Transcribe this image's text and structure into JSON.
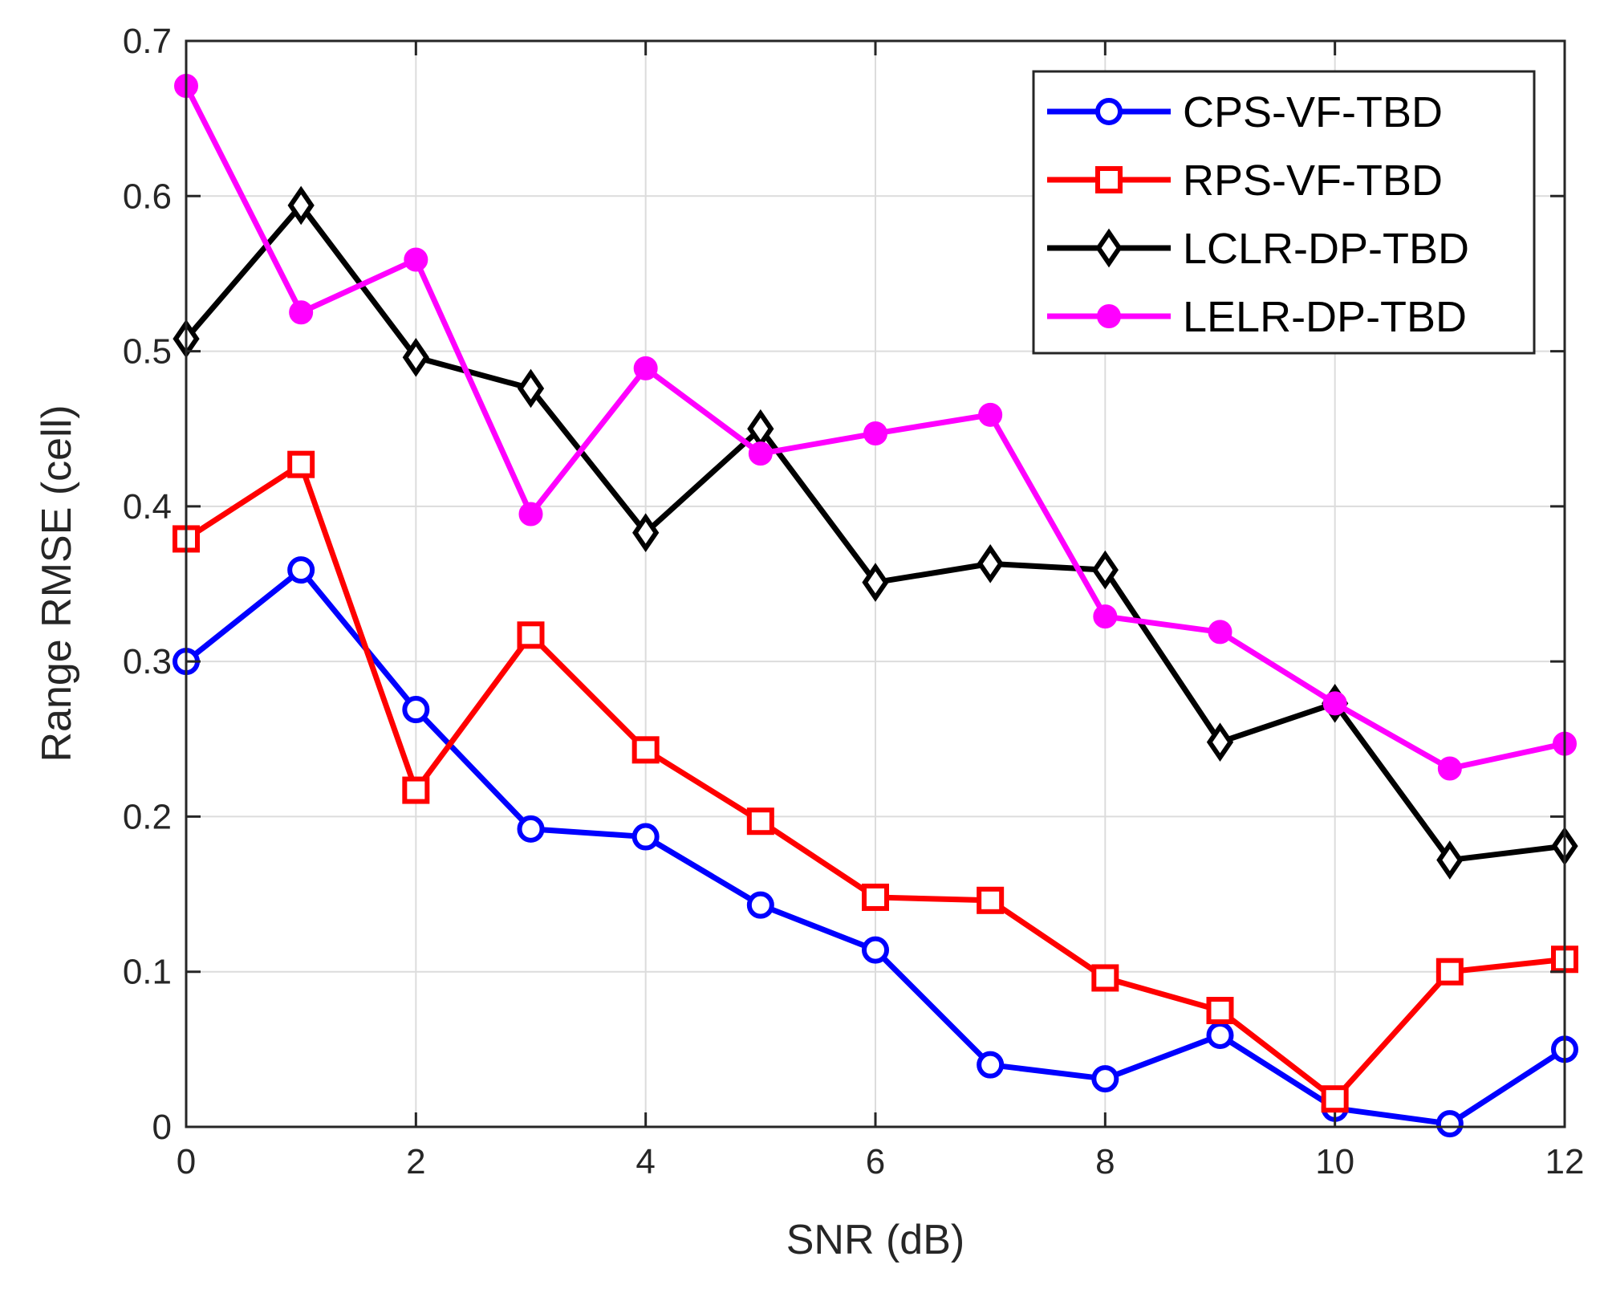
{
  "chart_data": {
    "type": "line",
    "title": "",
    "xlabel": "SNR (dB)",
    "ylabel": "Range RMSE (cell)",
    "xlim": [
      0,
      12
    ],
    "ylim": [
      0,
      0.7
    ],
    "grid": true,
    "legend_position": "top-right",
    "x": [
      0,
      1,
      2,
      3,
      4,
      5,
      6,
      7,
      8,
      9,
      10,
      11,
      12
    ],
    "xticks": [
      0,
      2,
      4,
      6,
      8,
      10,
      12
    ],
    "xtick_labels": [
      "0",
      "2",
      "4",
      "6",
      "8",
      "10",
      "12"
    ],
    "yticks": [
      0,
      0.1,
      0.2,
      0.3,
      0.4,
      0.5,
      0.6,
      0.7
    ],
    "ytick_labels": [
      "0",
      "0.1",
      "0.2",
      "0.3",
      "0.4",
      "0.5",
      "0.6",
      "0.7"
    ],
    "series": [
      {
        "name": "CPS-VF-TBD",
        "color": "#0000ff",
        "marker": "circle",
        "values": [
          0.3,
          0.359,
          0.269,
          0.192,
          0.187,
          0.143,
          0.114,
          0.04,
          0.031,
          0.059,
          0.012,
          0.002,
          0.05
        ]
      },
      {
        "name": "RPS-VF-TBD",
        "color": "#ff0000",
        "marker": "square",
        "values": [
          0.379,
          0.427,
          0.217,
          0.317,
          0.243,
          0.197,
          0.148,
          0.146,
          0.096,
          0.075,
          0.018,
          0.1,
          0.108
        ]
      },
      {
        "name": "LCLR-DP-TBD",
        "color": "#000000",
        "marker": "diamond",
        "values": [
          0.508,
          0.594,
          0.496,
          0.476,
          0.383,
          0.45,
          0.351,
          0.363,
          0.359,
          0.248,
          0.273,
          0.172,
          0.181
        ]
      },
      {
        "name": "LELR-DP-TBD",
        "color": "#ff00ff",
        "marker": "dot",
        "values": [
          0.671,
          0.525,
          0.559,
          0.395,
          0.489,
          0.434,
          0.447,
          0.459,
          0.329,
          0.319,
          0.273,
          0.231,
          0.247
        ]
      }
    ]
  }
}
